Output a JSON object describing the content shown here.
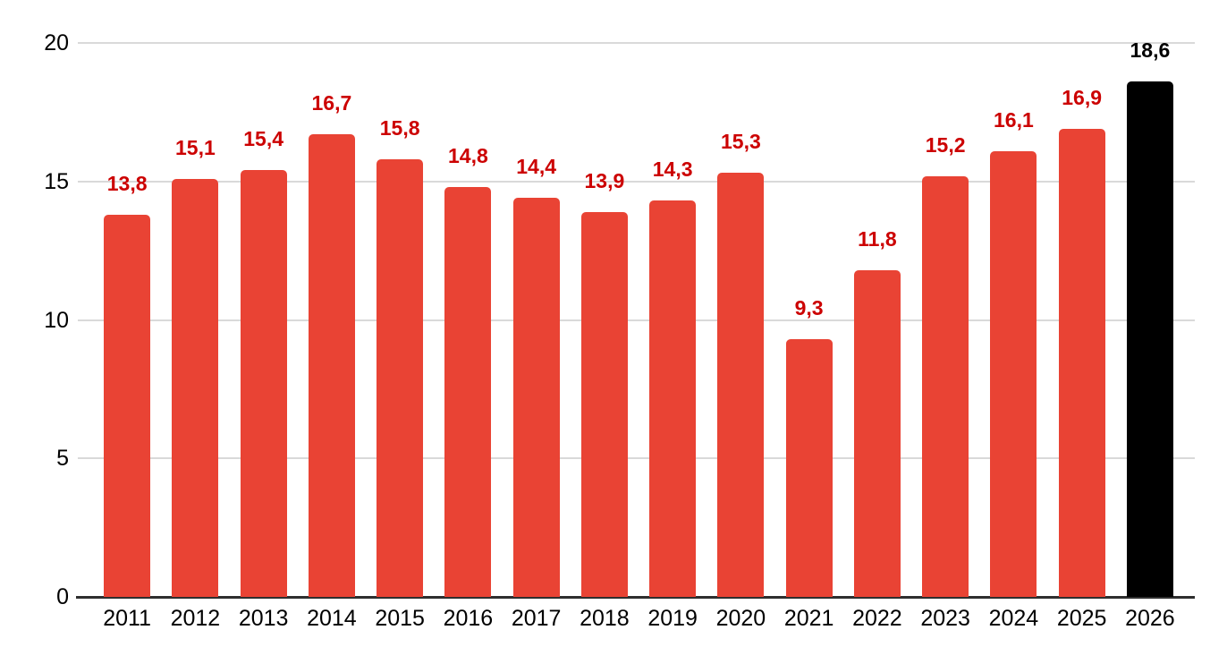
{
  "chart_data": {
    "type": "bar",
    "title": "",
    "xlabel": "",
    "ylabel": "",
    "categories": [
      "2011",
      "2012",
      "2013",
      "2014",
      "2015",
      "2016",
      "2017",
      "2018",
      "2019",
      "2020",
      "2021",
      "2022",
      "2023",
      "2024",
      "2025",
      "2026"
    ],
    "values": [
      13.8,
      15.1,
      15.4,
      16.7,
      15.8,
      14.8,
      14.4,
      13.9,
      14.3,
      15.3,
      9.3,
      11.8,
      15.2,
      16.1,
      16.9,
      18.6
    ],
    "value_labels": [
      "13,8",
      "15,1",
      "15,4",
      "16,7",
      "15,8",
      "14,8",
      "14,4",
      "13,9",
      "14,3",
      "15,3",
      "9,3",
      "11,8",
      "15,2",
      "16,1",
      "16,9",
      "18,6"
    ],
    "decimal_separator": ",",
    "ylim": [
      0,
      20
    ],
    "yticks": [
      0,
      5,
      10,
      15,
      20
    ],
    "ytick_labels": [
      "0",
      "5",
      "10",
      "15",
      "20"
    ],
    "grid": true,
    "legend": false,
    "highlight_index": 15,
    "colors": {
      "bar_default": "#E94334",
      "bar_highlight": "#000000",
      "value_label_default": "#CC0000",
      "value_label_highlight": "#000000",
      "gridline": "#D9D9D9",
      "axis_line": "#2E2E2E",
      "tick_text": "#000000"
    }
  }
}
